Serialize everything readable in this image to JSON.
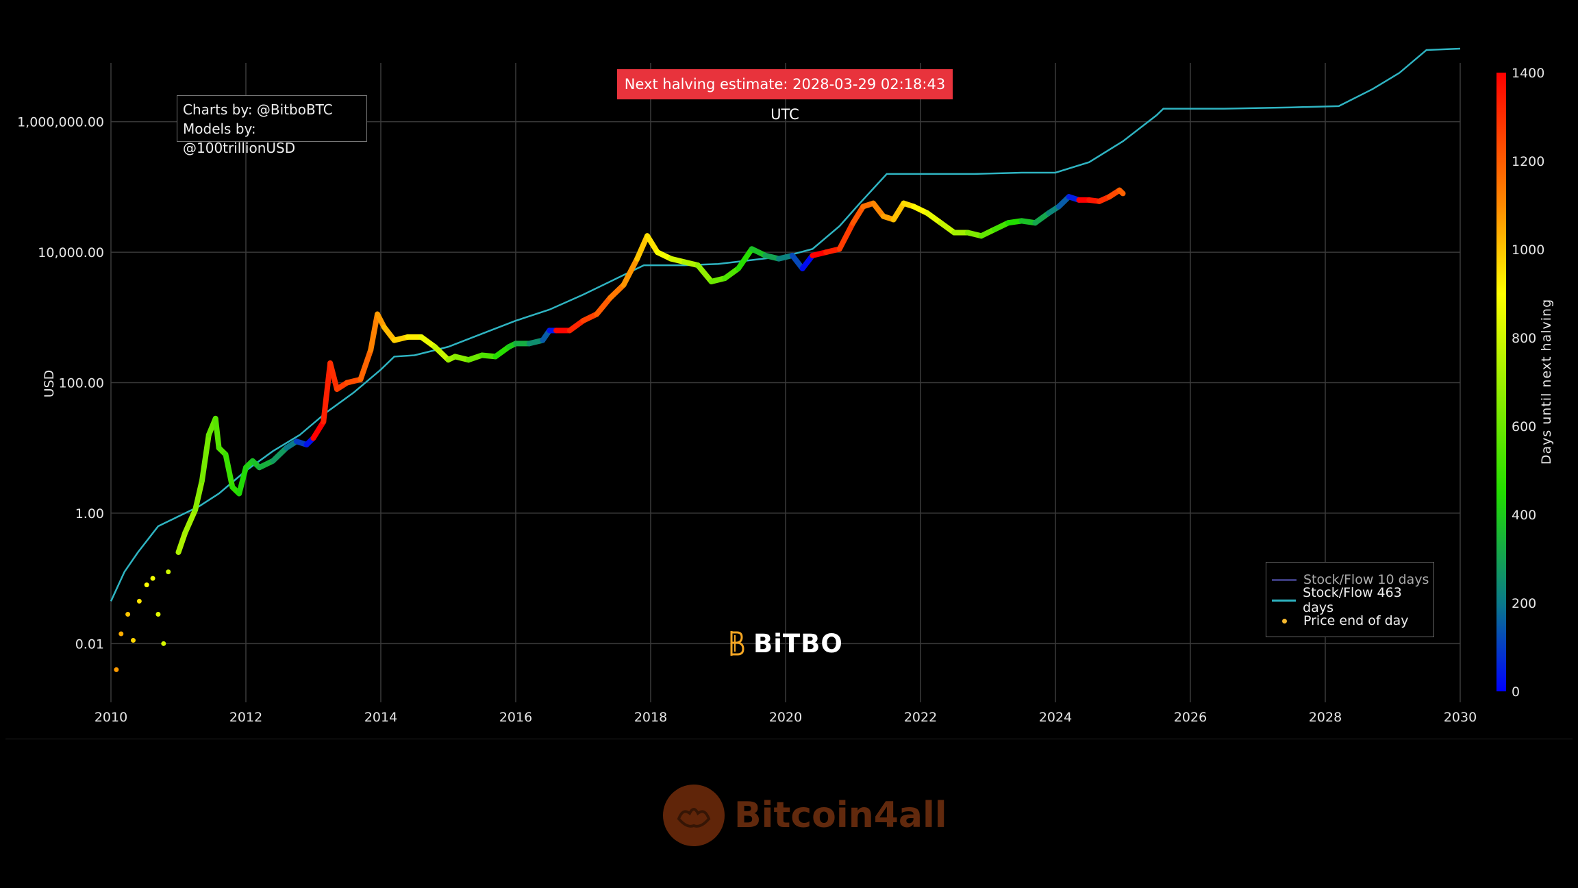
{
  "credits": {
    "line1": "Charts by: @BitboBTC",
    "line2": "Models by: @100trillionUSD"
  },
  "halving_banner": "Next halving estimate: 2028-03-29 02:18:43 UTC",
  "brand": "BiTBO",
  "watermark": "Bitcoin4all",
  "legend": [
    {
      "label": "Stock/Flow 10 days",
      "color": "#3a3a7a",
      "kind": "line"
    },
    {
      "label": "Stock/Flow 463 days",
      "color": "#2fb4c2",
      "kind": "line"
    },
    {
      "label": "Price end of day",
      "color": "#f5b82e",
      "kind": "dot"
    }
  ],
  "chart_data": {
    "type": "scatter",
    "ylabel": "USD",
    "yscale": "log",
    "xlim": [
      2010,
      2030
    ],
    "ylim_log10": [
      -2.9,
      6.9
    ],
    "x_ticks": [
      "2010",
      "2012",
      "2014",
      "2016",
      "2018",
      "2020",
      "2022",
      "2024",
      "2026",
      "2028",
      "2030"
    ],
    "y_ticks": [
      {
        "log10": -2,
        "label": "0.01"
      },
      {
        "log10": 0,
        "label": "1.00"
      },
      {
        "log10": 2,
        "label": "100.00"
      },
      {
        "log10": 4,
        "label": "10,000.00"
      },
      {
        "log10": 6,
        "label": "1,000,000.00"
      }
    ],
    "grid": true,
    "legend_position": "bottom-right",
    "colorbar": {
      "label": "Days until next halving",
      "min": 0,
      "max": 1400,
      "ticks": [
        "0",
        "200",
        "400",
        "600",
        "800",
        "1000",
        "1200",
        "1400"
      ],
      "stops": [
        {
          "v": 0,
          "color": "#0000ff"
        },
        {
          "v": 200,
          "color": "#0a7a8a"
        },
        {
          "v": 450,
          "color": "#22dd00"
        },
        {
          "v": 900,
          "color": "#ffff00"
        },
        {
          "v": 1100,
          "color": "#ff8a00"
        },
        {
          "v": 1400,
          "color": "#ff0000"
        }
      ]
    },
    "series": [
      {
        "name": "Stock/Flow 463 days",
        "color": "#2fb4c2",
        "points": [
          [
            2010.0,
            -1.35
          ],
          [
            2010.2,
            -0.9
          ],
          [
            2010.4,
            -0.6
          ],
          [
            2010.7,
            -0.2
          ],
          [
            2011.0,
            -0.05
          ],
          [
            2011.3,
            0.1
          ],
          [
            2011.6,
            0.3
          ],
          [
            2012.0,
            0.65
          ],
          [
            2012.4,
            0.95
          ],
          [
            2012.8,
            1.2
          ],
          [
            2013.2,
            1.55
          ],
          [
            2013.6,
            1.85
          ],
          [
            2014.0,
            2.2
          ],
          [
            2014.2,
            2.4
          ],
          [
            2014.5,
            2.42
          ],
          [
            2015.0,
            2.55
          ],
          [
            2015.5,
            2.75
          ],
          [
            2016.0,
            2.95
          ],
          [
            2016.5,
            3.12
          ],
          [
            2017.0,
            3.35
          ],
          [
            2017.5,
            3.6
          ],
          [
            2017.9,
            3.8
          ],
          [
            2018.5,
            3.8
          ],
          [
            2019.0,
            3.82
          ],
          [
            2019.5,
            3.88
          ],
          [
            2020.0,
            3.94
          ],
          [
            2020.4,
            4.05
          ],
          [
            2020.8,
            4.4
          ],
          [
            2021.1,
            4.75
          ],
          [
            2021.5,
            5.2
          ],
          [
            2022.0,
            5.2
          ],
          [
            2022.8,
            5.2
          ],
          [
            2023.5,
            5.22
          ],
          [
            2024.0,
            5.22
          ],
          [
            2024.5,
            5.38
          ],
          [
            2025.0,
            5.7
          ],
          [
            2025.5,
            6.1
          ],
          [
            2025.6,
            6.2
          ],
          [
            2026.5,
            6.2
          ],
          [
            2027.5,
            6.22
          ],
          [
            2028.2,
            6.24
          ],
          [
            2028.7,
            6.5
          ],
          [
            2029.1,
            6.75
          ],
          [
            2029.5,
            7.1
          ],
          [
            2030.0,
            7.12
          ]
        ]
      },
      {
        "name": "Price end of day",
        "color": "#f5b82e",
        "points": [
          [
            2010.08,
            -2.4,
            1070
          ],
          [
            2010.15,
            -1.85,
            1040
          ],
          [
            2010.25,
            -1.55,
            1000
          ],
          [
            2010.33,
            -1.95,
            970
          ],
          [
            2010.42,
            -1.35,
            950
          ],
          [
            2010.53,
            -1.1,
            900
          ],
          [
            2010.62,
            -1.0,
            870
          ],
          [
            2010.7,
            -1.55,
            840
          ],
          [
            2010.78,
            -2.0,
            820
          ],
          [
            2010.85,
            -0.9,
            800
          ],
          [
            2011.0,
            -0.6,
            730
          ],
          [
            2011.1,
            -0.3,
            710
          ],
          [
            2011.25,
            0.05,
            660
          ],
          [
            2011.35,
            0.5,
            620
          ],
          [
            2011.45,
            1.2,
            590
          ],
          [
            2011.55,
            1.45,
            560
          ],
          [
            2011.6,
            1.0,
            540
          ],
          [
            2011.7,
            0.9,
            500
          ],
          [
            2011.8,
            0.4,
            470
          ],
          [
            2011.9,
            0.3,
            440
          ],
          [
            2012.0,
            0.7,
            420
          ],
          [
            2012.1,
            0.8,
            380
          ],
          [
            2012.2,
            0.7,
            340
          ],
          [
            2012.4,
            0.8,
            280
          ],
          [
            2012.6,
            1.0,
            200
          ],
          [
            2012.75,
            1.1,
            100
          ],
          [
            2012.9,
            1.05,
            30
          ],
          [
            2013.0,
            1.15,
            1400
          ],
          [
            2013.15,
            1.4,
            1330
          ],
          [
            2013.25,
            2.3,
            1300
          ],
          [
            2013.35,
            1.9,
            1270
          ],
          [
            2013.5,
            2.0,
            1230
          ],
          [
            2013.7,
            2.05,
            1180
          ],
          [
            2013.85,
            2.5,
            1120
          ],
          [
            2013.95,
            3.05,
            1070
          ],
          [
            2014.05,
            2.85,
            1020
          ],
          [
            2014.2,
            2.65,
            980
          ],
          [
            2014.4,
            2.7,
            930
          ],
          [
            2014.6,
            2.7,
            860
          ],
          [
            2014.8,
            2.55,
            790
          ],
          [
            2015.0,
            2.35,
            700
          ],
          [
            2015.1,
            2.4,
            660
          ],
          [
            2015.3,
            2.35,
            600
          ],
          [
            2015.5,
            2.42,
            540
          ],
          [
            2015.7,
            2.4,
            460
          ],
          [
            2015.9,
            2.55,
            400
          ],
          [
            2016.0,
            2.6,
            330
          ],
          [
            2016.2,
            2.6,
            250
          ],
          [
            2016.4,
            2.65,
            150
          ],
          [
            2016.5,
            2.8,
            40
          ],
          [
            2016.6,
            2.8,
            1390
          ],
          [
            2016.8,
            2.8,
            1320
          ],
          [
            2017.0,
            2.95,
            1260
          ],
          [
            2017.2,
            3.05,
            1200
          ],
          [
            2017.4,
            3.3,
            1140
          ],
          [
            2017.6,
            3.5,
            1080
          ],
          [
            2017.8,
            3.9,
            1000
          ],
          [
            2017.95,
            4.25,
            950
          ],
          [
            2018.1,
            4.0,
            880
          ],
          [
            2018.3,
            3.9,
            800
          ],
          [
            2018.5,
            3.85,
            740
          ],
          [
            2018.7,
            3.8,
            680
          ],
          [
            2018.9,
            3.55,
            600
          ],
          [
            2019.1,
            3.6,
            540
          ],
          [
            2019.3,
            3.75,
            460
          ],
          [
            2019.5,
            4.05,
            380
          ],
          [
            2019.7,
            3.95,
            300
          ],
          [
            2019.9,
            3.9,
            220
          ],
          [
            2020.1,
            3.95,
            120
          ],
          [
            2020.25,
            3.75,
            20
          ],
          [
            2020.4,
            3.95,
            1400
          ],
          [
            2020.6,
            4.0,
            1330
          ],
          [
            2020.8,
            4.05,
            1270
          ],
          [
            2021.0,
            4.45,
            1210
          ],
          [
            2021.15,
            4.7,
            1160
          ],
          [
            2021.3,
            4.75,
            1110
          ],
          [
            2021.45,
            4.55,
            1060
          ],
          [
            2021.6,
            4.5,
            1010
          ],
          [
            2021.75,
            4.75,
            960
          ],
          [
            2021.9,
            4.7,
            910
          ],
          [
            2022.1,
            4.6,
            850
          ],
          [
            2022.3,
            4.45,
            780
          ],
          [
            2022.5,
            4.3,
            710
          ],
          [
            2022.7,
            4.3,
            640
          ],
          [
            2022.9,
            4.25,
            580
          ],
          [
            2023.1,
            4.35,
            520
          ],
          [
            2023.3,
            4.45,
            450
          ],
          [
            2023.5,
            4.48,
            380
          ],
          [
            2023.7,
            4.45,
            310
          ],
          [
            2023.9,
            4.6,
            230
          ],
          [
            2024.05,
            4.7,
            150
          ],
          [
            2024.2,
            4.85,
            50
          ],
          [
            2024.35,
            4.8,
            1400
          ],
          [
            2024.5,
            4.8,
            1350
          ],
          [
            2024.65,
            4.78,
            1300
          ],
          [
            2024.8,
            4.85,
            1240
          ],
          [
            2024.95,
            4.95,
            1190
          ],
          [
            2025.0,
            4.9,
            1170
          ]
        ]
      }
    ]
  }
}
